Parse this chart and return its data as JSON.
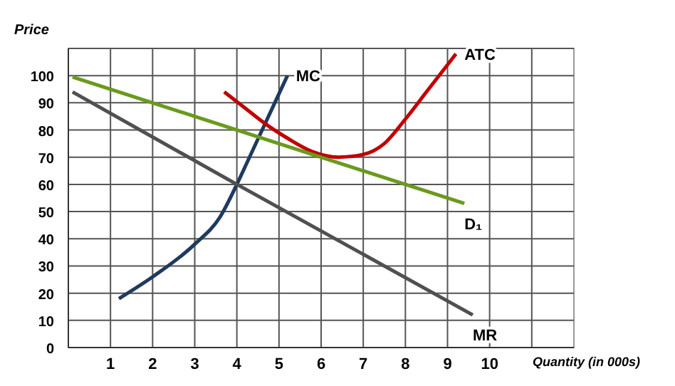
{
  "chart_data": {
    "type": "line",
    "xlabel": "Quantity (in 000s)",
    "ylabel": "Price",
    "xlim": [
      0,
      12
    ],
    "ylim": [
      0,
      110
    ],
    "xticks": [
      1,
      2,
      3,
      4,
      5,
      6,
      7,
      8,
      9,
      10,
      {
        "value": 11,
        "label": null
      }
    ],
    "yticks": [
      0,
      10,
      20,
      30,
      40,
      50,
      60,
      70,
      80,
      90,
      100,
      {
        "value": 110,
        "label": null
      }
    ],
    "grid": true,
    "marker": "none",
    "line_style": "solid",
    "series": [
      {
        "name": "MC",
        "color": "#1f3a5f",
        "x": [
          1.2,
          2,
          3,
          3.6,
          4,
          4.3,
          4.6,
          4.9,
          5.2
        ],
        "values": [
          18,
          26,
          38,
          48,
          60,
          70,
          80,
          90,
          100
        ]
      },
      {
        "name": "ATC",
        "color": "#c00000",
        "x": [
          3.7,
          4.2,
          4.7,
          5.2,
          5.8,
          6.4,
          7,
          7.5,
          8,
          8.5,
          9,
          9.2
        ],
        "values": [
          94,
          88,
          82,
          77,
          72,
          70,
          71,
          75,
          84,
          94,
          104,
          108
        ]
      },
      {
        "name": "D₁",
        "color": "#6a9a1e",
        "x": [
          0.1,
          9.4
        ],
        "values": [
          99.5,
          53
        ]
      },
      {
        "name": "MR",
        "color": "#505050",
        "x": [
          0.1,
          4,
          9.6
        ],
        "values": [
          94,
          60,
          12
        ]
      }
    ]
  }
}
